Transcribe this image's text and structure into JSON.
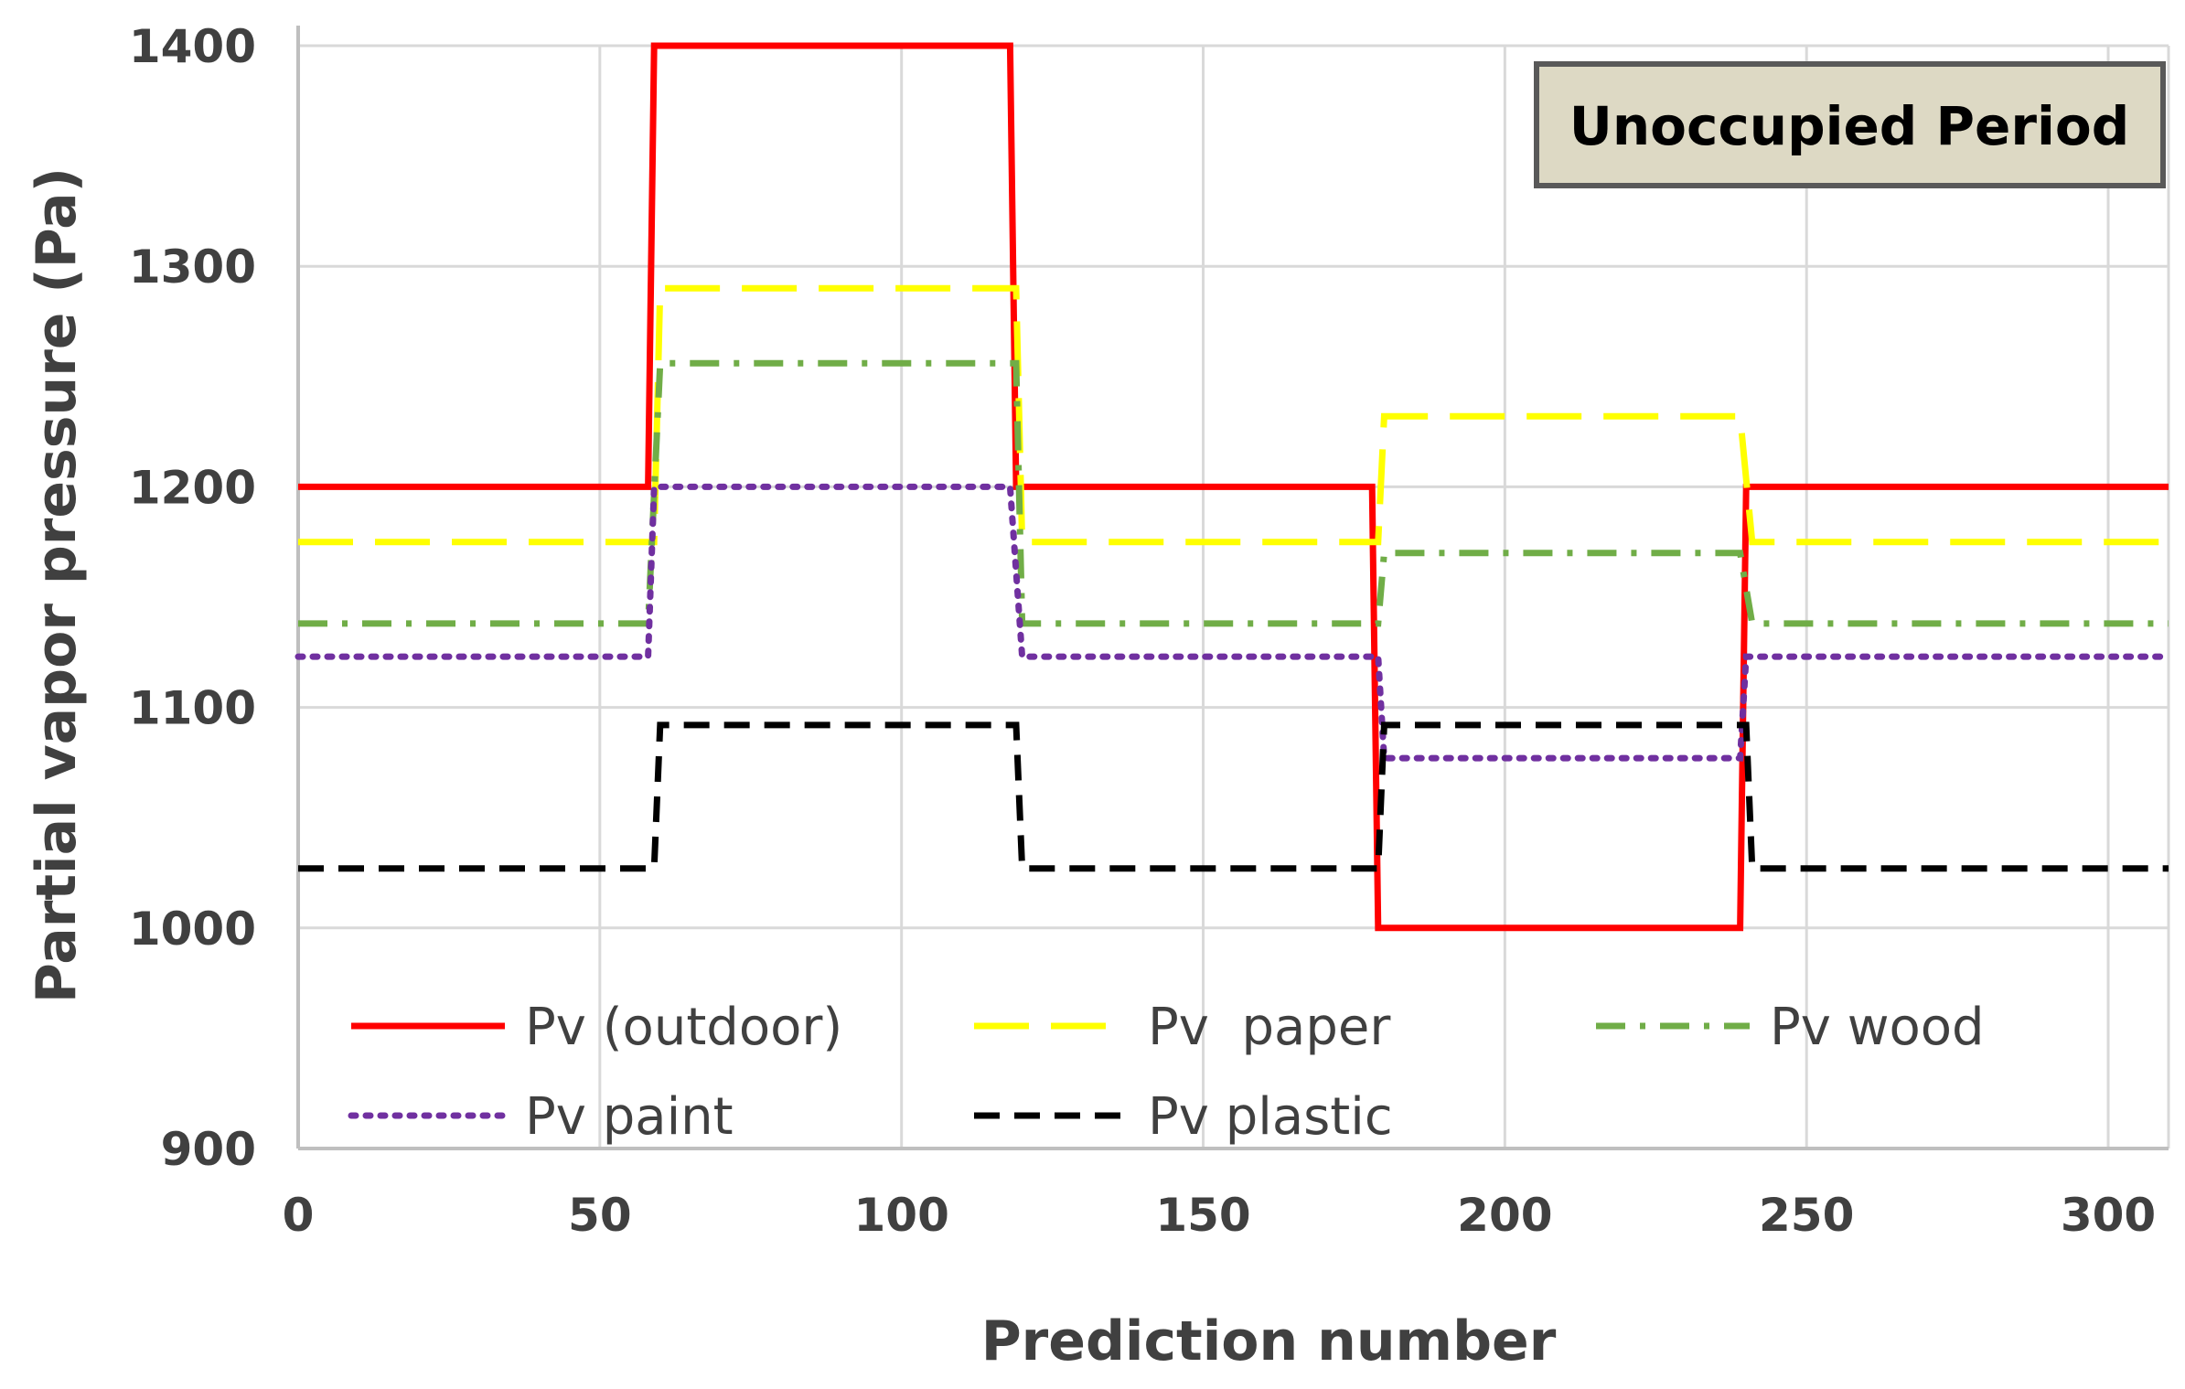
{
  "chart_data": {
    "type": "line",
    "xlabel": "Prediction number",
    "ylabel": "Partial vapor pressure (Pa)",
    "xlim": [
      0,
      310
    ],
    "ylim": [
      900,
      1400
    ],
    "xticks": [
      0,
      50,
      100,
      150,
      200,
      250,
      300
    ],
    "yticks": [
      900,
      1000,
      1100,
      1200,
      1300,
      1400
    ],
    "grid": true,
    "legend_position": "bottom-inside",
    "annotation": "Unoccupied Period",
    "colors": {
      "outdoor": "#ff0000",
      "paper": "#ffff00",
      "wood": "#70ad47",
      "paint": "#7030a0",
      "plastic": "#000000",
      "grid": "#d9d9d9",
      "axis": "#bfbfbf",
      "annotation_fill": "#ddd9c4",
      "annotation_border": "#595959"
    },
    "series": [
      {
        "name": "Pv (outdoor)",
        "style": "solid",
        "color": "#ff0000",
        "x": [
          0,
          58,
          59,
          118,
          119,
          178,
          179,
          239,
          240,
          310
        ],
        "y": [
          1200,
          1200,
          1400,
          1400,
          1200,
          1200,
          1000,
          1000,
          1200,
          1200
        ]
      },
      {
        "name": "Pv  paper",
        "style": "long-dash",
        "color": "#ffff00",
        "x": [
          0,
          59,
          60,
          119,
          120,
          179,
          180,
          239,
          241,
          310
        ],
        "y": [
          1175,
          1175,
          1290,
          1290,
          1175,
          1175,
          1232,
          1232,
          1175,
          1175
        ]
      },
      {
        "name": "Pv wood",
        "style": "dash-dot",
        "color": "#70ad47",
        "x": [
          0,
          58,
          60,
          119,
          120,
          179,
          180,
          239,
          241,
          310
        ],
        "y": [
          1138,
          1138,
          1256,
          1256,
          1138,
          1138,
          1170,
          1170,
          1138,
          1138
        ]
      },
      {
        "name": "Pv paint",
        "style": "dotted",
        "color": "#7030a0",
        "x": [
          0,
          58,
          59,
          118,
          120,
          179,
          180,
          239,
          240,
          310
        ],
        "y": [
          1123,
          1123,
          1200,
          1200,
          1123,
          1123,
          1077,
          1077,
          1123,
          1123
        ]
      },
      {
        "name": "Pv plastic",
        "style": "dashed",
        "color": "#000000",
        "x": [
          0,
          59,
          60,
          119,
          120,
          179,
          180,
          240,
          241,
          310
        ],
        "y": [
          1027,
          1027,
          1092,
          1092,
          1027,
          1027,
          1092,
          1092,
          1027,
          1027
        ]
      }
    ]
  }
}
